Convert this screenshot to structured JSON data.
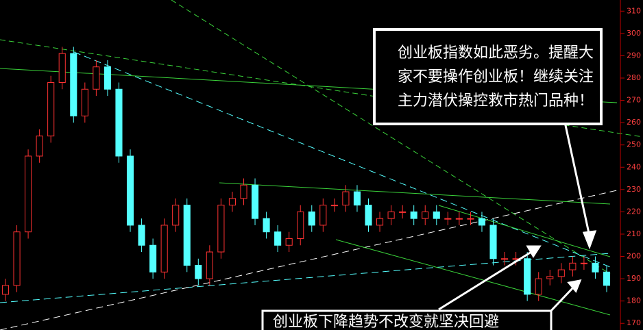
{
  "chart_data": {
    "type": "candlestick",
    "open": [
      183,
      187,
      211,
      245,
      254,
      278,
      291,
      263,
      275,
      285,
      275,
      245,
      214,
      205,
      193,
      214,
      223,
      196,
      190,
      202,
      223,
      226,
      232,
      217,
      211,
      205,
      208,
      220,
      214,
      223,
      223,
      229,
      223,
      214,
      217,
      220,
      220,
      217,
      220,
      217,
      217,
      217,
      217,
      214,
      199,
      199,
      199,
      183,
      190,
      191,
      194,
      197,
      197,
      193
    ],
    "high": [
      190,
      214,
      248,
      257,
      281,
      294,
      294,
      278,
      288,
      288,
      278,
      248,
      217,
      208,
      217,
      226,
      226,
      199,
      205,
      226,
      229,
      235,
      235,
      220,
      214,
      211,
      223,
      223,
      226,
      226,
      232,
      232,
      226,
      220,
      223,
      223,
      223,
      223,
      223,
      220,
      220,
      220,
      220,
      217,
      202,
      202,
      202,
      193,
      194,
      197,
      200,
      200,
      200,
      196
    ],
    "low": [
      180,
      184,
      208,
      242,
      251,
      275,
      260,
      260,
      272,
      272,
      242,
      211,
      202,
      190,
      190,
      211,
      193,
      187,
      187,
      199,
      220,
      223,
      214,
      208,
      202,
      202,
      205,
      211,
      211,
      220,
      220,
      220,
      211,
      211,
      214,
      217,
      214,
      214,
      214,
      214,
      214,
      214,
      211,
      196,
      196,
      196,
      180,
      180,
      187,
      188,
      191,
      194,
      190,
      184
    ],
    "close": [
      187,
      211,
      245,
      254,
      278,
      291,
      263,
      275,
      285,
      275,
      245,
      214,
      205,
      193,
      214,
      223,
      196,
      190,
      202,
      223,
      226,
      232,
      217,
      211,
      205,
      208,
      220,
      214,
      223,
      223,
      229,
      223,
      214,
      217,
      220,
      220,
      217,
      220,
      217,
      217,
      217,
      217,
      214,
      199,
      199,
      199,
      183,
      190,
      191,
      194,
      197,
      197,
      193,
      187
    ],
    "up_color": "#ff3232",
    "down_color": "#54ffff",
    "ylim": [
      167,
      315
    ],
    "yticks": [
      170,
      180,
      190,
      200,
      210,
      220,
      230,
      240,
      250,
      260,
      270,
      280,
      290,
      300,
      310
    ],
    "annotations": [
      "创业板指数如此恶劣。提醒大",
      "家不要操作创业板！继续关注",
      "主力潜伏操控救市热门品种！",
      "创业板下降趋势不改变就坚决回避"
    ]
  }
}
